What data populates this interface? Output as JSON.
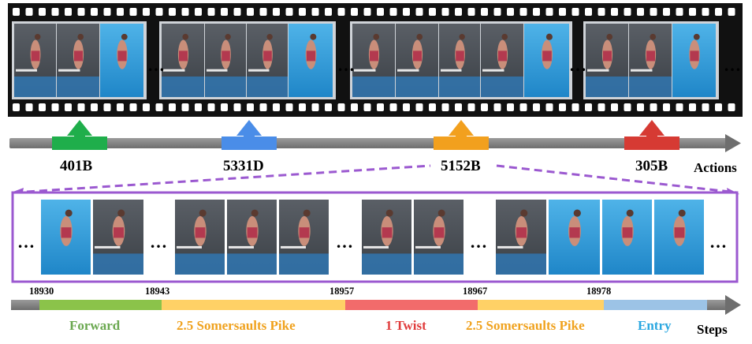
{
  "actions_axis": {
    "label": "Actions",
    "items": [
      {
        "code": "401B",
        "color": "#1fae4b"
      },
      {
        "code": "5331D",
        "color": "#4a8de8"
      },
      {
        "code": "5152B",
        "color": "#f2a01e"
      },
      {
        "code": "305B",
        "color": "#d63a33"
      }
    ]
  },
  "zoom_outline_color": "#9b59d0",
  "steps_axis": {
    "label": "Steps",
    "frame_markers": [
      "18930",
      "18943",
      "18957",
      "18967",
      "18978"
    ],
    "segments": [
      {
        "name": "Forward",
        "color": "#8bc34a",
        "text_color": "#6aa84f"
      },
      {
        "name": "2.5 Somersaults Pike",
        "color": "#ffd166",
        "text_color": "#f0a21e"
      },
      {
        "name": "1 Twist",
        "color": "#f26b6b",
        "text_color": "#e03c3c"
      },
      {
        "name": "2.5 Somersaults Pike",
        "color": "#ffd166",
        "text_color": "#f0a21e"
      },
      {
        "name": "Entry",
        "color": "#9cc3e6",
        "text_color": "#2aa7e0"
      }
    ]
  }
}
